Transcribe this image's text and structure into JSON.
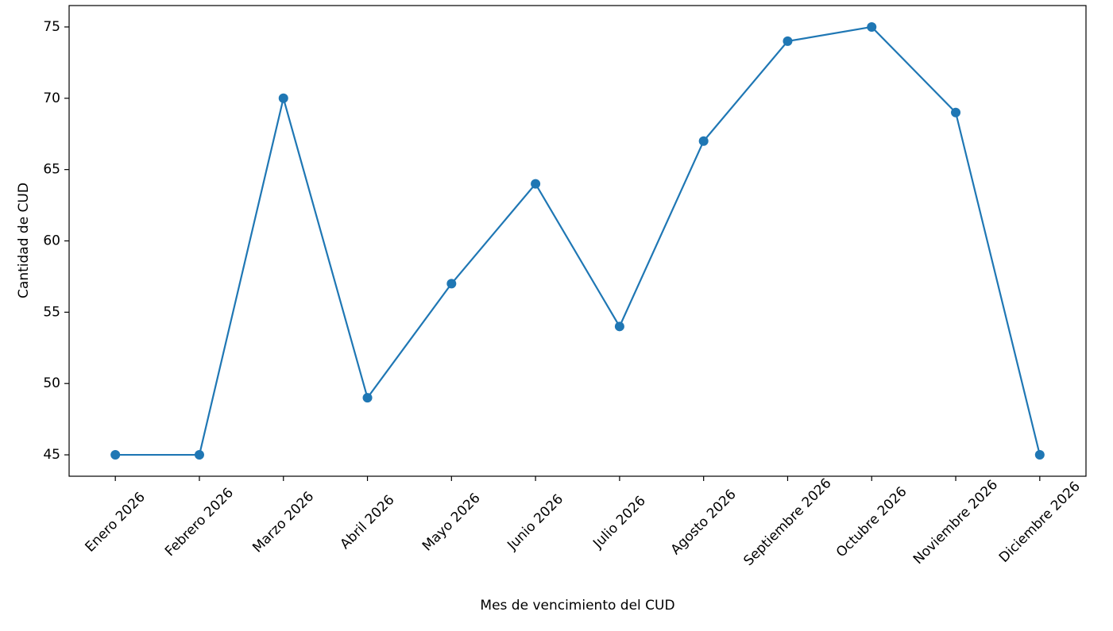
{
  "chart_data": {
    "type": "line",
    "x_label": "Mes de vencimiento del CUD",
    "y_label": "Cantidad de CUD",
    "categories": [
      "Enero 2026",
      "Febrero 2026",
      "Marzo 2026",
      "Abril 2026",
      "Mayo 2026",
      "Junio 2026",
      "Julio 2026",
      "Agosto 2026",
      "Septiembre 2026",
      "Octubre 2026",
      "Noviembre 2026",
      "Diciembre 2026"
    ],
    "values": [
      45,
      45,
      70,
      49,
      57,
      64,
      54,
      67,
      74,
      75,
      69,
      45
    ],
    "color": "#1f77b4",
    "ylim": [
      43.5,
      76.5
    ],
    "yticks": [
      45,
      50,
      55,
      60,
      65,
      70,
      75
    ],
    "grid": false
  }
}
